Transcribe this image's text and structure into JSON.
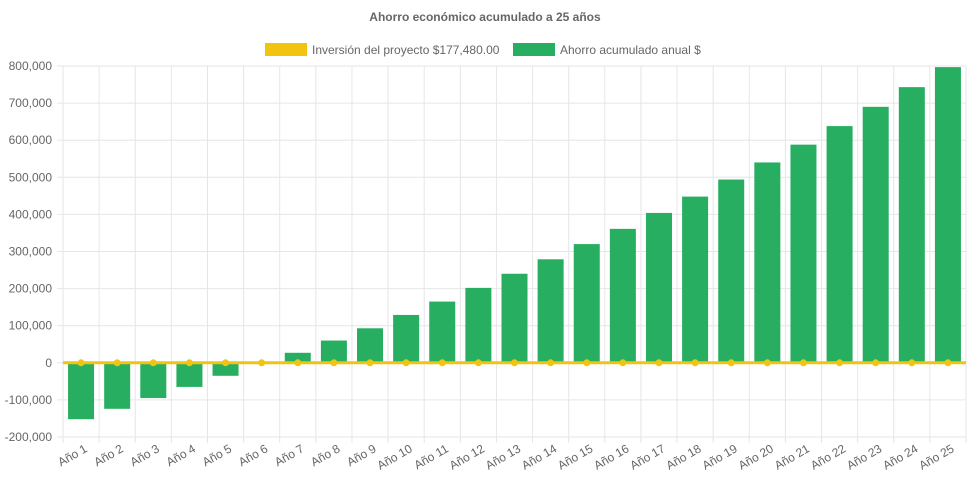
{
  "chart_data": {
    "type": "bar",
    "title": "Ahorro económico acumulado a 25 años",
    "categories": [
      "Año 1",
      "Año 2",
      "Año 3",
      "Año 4",
      "Año 5",
      "Año 6",
      "Año 7",
      "Año 8",
      "Año 9",
      "Año 10",
      "Año 11",
      "Año 12",
      "Año 13",
      "Año 14",
      "Año 15",
      "Año 16",
      "Año 17",
      "Año 18",
      "Año 19",
      "Año 20",
      "Año 21",
      "Año 22",
      "Año 23",
      "Año 24",
      "Año 25"
    ],
    "series": [
      {
        "name": "Inversión del proyecto $177,480.00",
        "type": "line",
        "color": "#f1c40f",
        "values": [
          0,
          0,
          0,
          0,
          0,
          0,
          0,
          0,
          0,
          0,
          0,
          0,
          0,
          0,
          0,
          0,
          0,
          0,
          0,
          0,
          0,
          0,
          0,
          0,
          0
        ]
      },
      {
        "name": "Ahorro acumulado anual $",
        "type": "bar",
        "color": "#27ae60",
        "values": [
          -152000,
          -124000,
          -95000,
          -65000,
          -35000,
          -3000,
          27000,
          60000,
          93000,
          129000,
          165000,
          202000,
          240000,
          279000,
          320000,
          361000,
          404000,
          448000,
          494000,
          540000,
          588000,
          638000,
          690000,
          743000,
          797000
        ]
      }
    ],
    "yticks": [
      "800,000",
      "700,000",
      "600,000",
      "500,000",
      "400,000",
      "300,000",
      "200,000",
      "100,000",
      "0",
      "-100,000",
      "-200,000"
    ],
    "ylim": [
      -200000,
      800000
    ],
    "grid": true,
    "legend_position": "top"
  }
}
